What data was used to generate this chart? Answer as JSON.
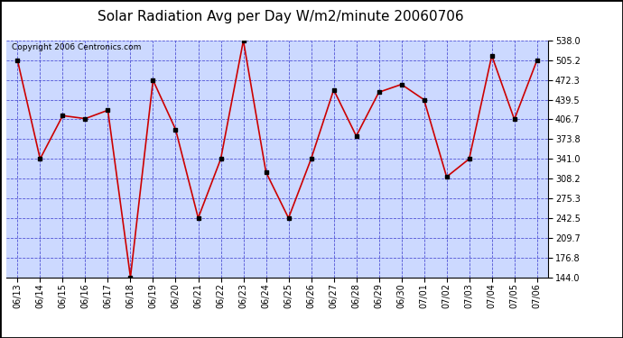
{
  "title": "Solar Radiation Avg per Day W/m2/minute 20060706",
  "copyright_text": "Copyright 2006 Centronics.com",
  "labels": [
    "06/13",
    "06/14",
    "06/15",
    "06/16",
    "06/17",
    "06/18",
    "06/19",
    "06/20",
    "06/21",
    "06/22",
    "06/23",
    "06/24",
    "06/25",
    "06/26",
    "06/27",
    "06/28",
    "06/29",
    "06/30",
    "07/01",
    "07/02",
    "07/03",
    "07/04",
    "07/05",
    "07/06"
  ],
  "values": [
    505.0,
    341.0,
    413.0,
    408.0,
    422.0,
    144.0,
    472.0,
    390.0,
    242.5,
    341.0,
    538.0,
    319.0,
    242.5,
    341.0,
    456.0,
    379.0,
    452.0,
    465.0,
    439.5,
    311.0,
    341.0,
    513.0,
    406.7,
    505.0
  ],
  "ymin": 144.0,
  "ymax": 538.0,
  "yticks": [
    144.0,
    176.8,
    209.7,
    242.5,
    275.3,
    308.2,
    341.0,
    373.8,
    406.7,
    439.5,
    472.3,
    505.2,
    538.0
  ],
  "line_color": "#cc0000",
  "marker_color": "#000000",
  "bg_color": "#ccd9ff",
  "fig_bg_color": "#ffffff",
  "outer_border_color": "#000000",
  "grid_color": "#3333cc",
  "title_fontsize": 11,
  "tick_fontsize": 7,
  "copyright_fontsize": 6.5
}
